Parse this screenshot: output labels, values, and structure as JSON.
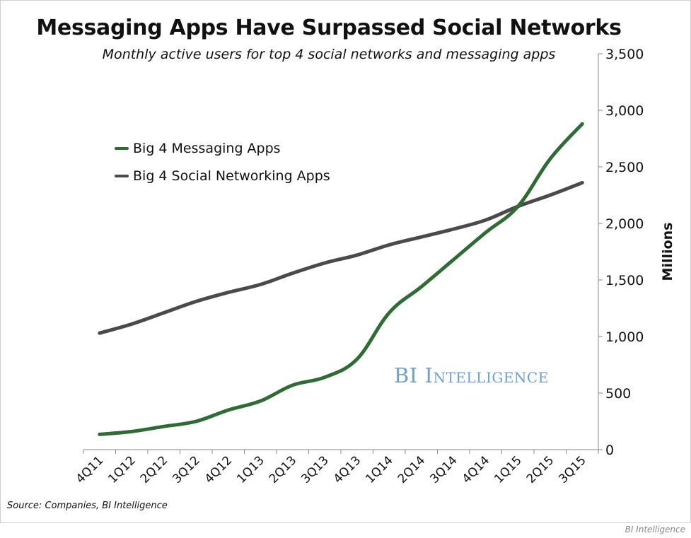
{
  "title": "Messaging Apps Have Surpassed Social Networks",
  "subtitle": "Monthly active users for top 4 social networks and messaging apps",
  "source": "Source: Companies, BI Intelligence",
  "watermark": "BI Intelligence",
  "footer_credit": "BI Intelligence",
  "chart_data": {
    "type": "line",
    "x": [
      "4Q11",
      "1Q12",
      "2Q12",
      "3Q12",
      "4Q12",
      "1Q13",
      "2Q13",
      "3Q13",
      "4Q13",
      "1Q14",
      "2Q14",
      "3Q14",
      "4Q14",
      "1Q15",
      "2Q15",
      "3Q15"
    ],
    "series": [
      {
        "name": "Big 4 Messaging Apps",
        "color": "#2e6b35",
        "values": [
          135,
          160,
          205,
          250,
          350,
          430,
          570,
          640,
          800,
          1210,
          1440,
          1680,
          1920,
          2150,
          2570,
          2880
        ]
      },
      {
        "name": "Big 4 Social Networking Apps",
        "color": "#4a4a4a",
        "values": [
          1030,
          1110,
          1210,
          1310,
          1390,
          1460,
          1560,
          1650,
          1720,
          1810,
          1880,
          1950,
          2030,
          2150,
          2250,
          2360
        ]
      }
    ],
    "ylabel": "Millions",
    "ylim": [
      0,
      3500
    ],
    "yticks": [
      0,
      500,
      1000,
      1500,
      2000,
      2500,
      3000,
      3500
    ],
    "ytick_labels": [
      "0",
      "500",
      "1,000",
      "1,500",
      "2,000",
      "2,500",
      "3,000",
      "3,500"
    ],
    "y_axis_side": "right",
    "grid": false,
    "legend": "upper-left"
  }
}
